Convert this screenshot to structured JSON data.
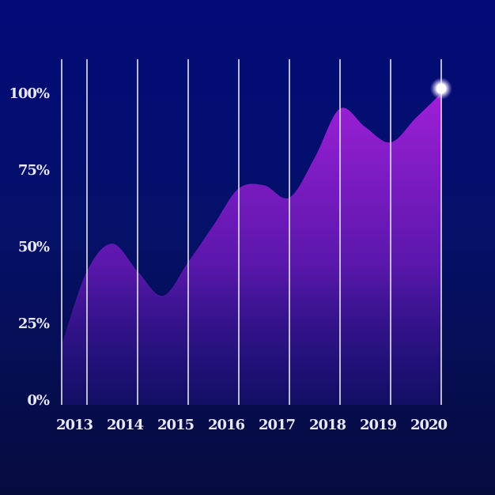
{
  "chart_data": {
    "type": "area",
    "title": "",
    "xlabel": "",
    "ylabel": "",
    "categories": [
      "2013",
      "2014",
      "2015",
      "2016",
      "2017",
      "2018",
      "2019",
      "2020"
    ],
    "x": [
      2012.5,
      2013,
      2013.5,
      2014,
      2014.5,
      2015,
      2015.5,
      2016,
      2016.5,
      2017,
      2017.5,
      2018,
      2018.5,
      2019,
      2019.5,
      2020
    ],
    "values": [
      18,
      42,
      51,
      42,
      34,
      45,
      57,
      69,
      70,
      66,
      79,
      95,
      89,
      84,
      92,
      100
    ],
    "ylim": [
      0,
      100
    ],
    "yticks": [
      "0%",
      "25%",
      "50%",
      "75%",
      "100%"
    ],
    "grid": "vertical",
    "highlight": {
      "x": 2020,
      "y": 100
    },
    "colors": {
      "area_top": "#a020d8",
      "area_bottom": "#2a1290",
      "grid": "#d8d8e8",
      "highlight": "#ffffff"
    }
  }
}
